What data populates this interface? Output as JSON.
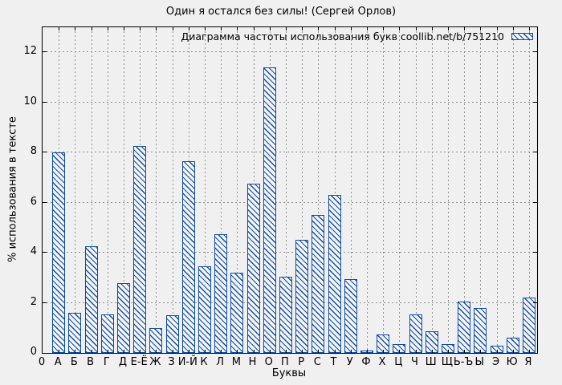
{
  "chart_data": {
    "type": "bar",
    "title": "Один я остался без силы! (Сергей Орлов)",
    "legend_label": "Диаграмма частоты использования букв coollib.net/b/751210",
    "xlabel": "Буквы",
    "ylabel": "% использования в тексте",
    "origin_label": "0",
    "ylim": [
      0,
      13
    ],
    "yticks": [
      0,
      2,
      4,
      6,
      8,
      10,
      12
    ],
    "grid": true,
    "legend_position": "top-right-inside",
    "categories": [
      "А",
      "Б",
      "В",
      "Г",
      "Д",
      "Е-Ё",
      "Ж",
      "З",
      "И-Й",
      "К",
      "Л",
      "М",
      "Н",
      "О",
      "П",
      "Р",
      "С",
      "Т",
      "У",
      "Ф",
      "Х",
      "Ц",
      "Ч",
      "Ш",
      "Щ",
      "Ь-Ъ",
      "Ы",
      "Э",
      "Ю",
      "Я"
    ],
    "values": [
      8.0,
      1.6,
      4.25,
      1.55,
      2.8,
      8.25,
      1.0,
      1.5,
      7.65,
      3.45,
      4.75,
      3.2,
      6.75,
      11.4,
      3.05,
      4.5,
      5.5,
      6.3,
      2.95,
      0.1,
      0.75,
      0.35,
      1.55,
      0.85,
      0.35,
      2.05,
      1.8,
      0.3,
      0.6,
      2.2
    ],
    "colors": {
      "accent": "#0f4da8",
      "grid": "#909090",
      "background": "#f0f0f0",
      "bar_fill": "#f4f4f4",
      "text": "#000000"
    }
  }
}
